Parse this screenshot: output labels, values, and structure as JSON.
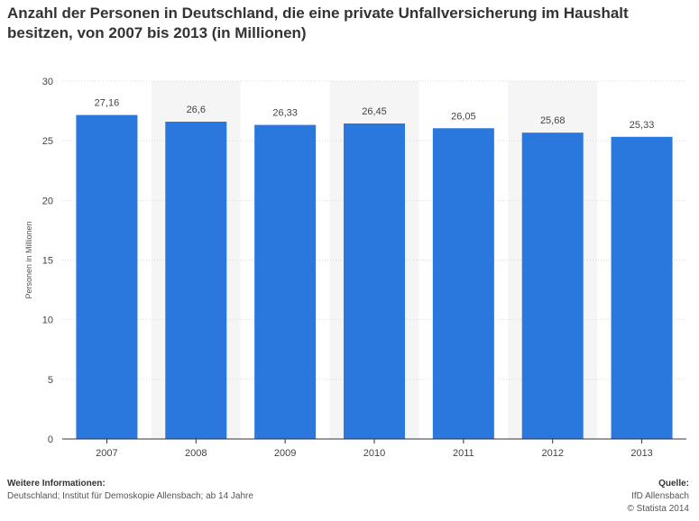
{
  "title_line1": "Anzahl der Personen in Deutschland, die eine private Unfallversicherung im Haushalt",
  "title_line2": "besitzen, von 2007 bis 2013 (in Millionen)",
  "footer": {
    "info_heading": "Weitere Informationen:",
    "info_text": "Deutschland; Institut für Demoskopie Allensbach; ab 14 Jahre",
    "source_heading": "Quelle:",
    "source_name": "IfD Allensbach",
    "copyright": "© Statista 2014"
  },
  "colors": {
    "bar": "#2a77dd",
    "band": "#f5f5f5",
    "grid": "#d9d9d9",
    "axis": "#333333"
  },
  "chart_data": {
    "type": "bar",
    "categories": [
      "2007",
      "2008",
      "2009",
      "2010",
      "2011",
      "2012",
      "2013"
    ],
    "values": [
      27.16,
      26.6,
      26.33,
      26.45,
      26.05,
      25.68,
      25.33
    ],
    "value_labels": [
      "27,16",
      "26,6",
      "26,33",
      "26,45",
      "26,05",
      "25,68",
      "25,33"
    ],
    "ylabel": "Personen in Millionen",
    "ylim": [
      0,
      30
    ],
    "yticks": [
      0,
      5,
      10,
      15,
      20,
      25,
      30
    ],
    "grid": true,
    "legend": "none"
  }
}
